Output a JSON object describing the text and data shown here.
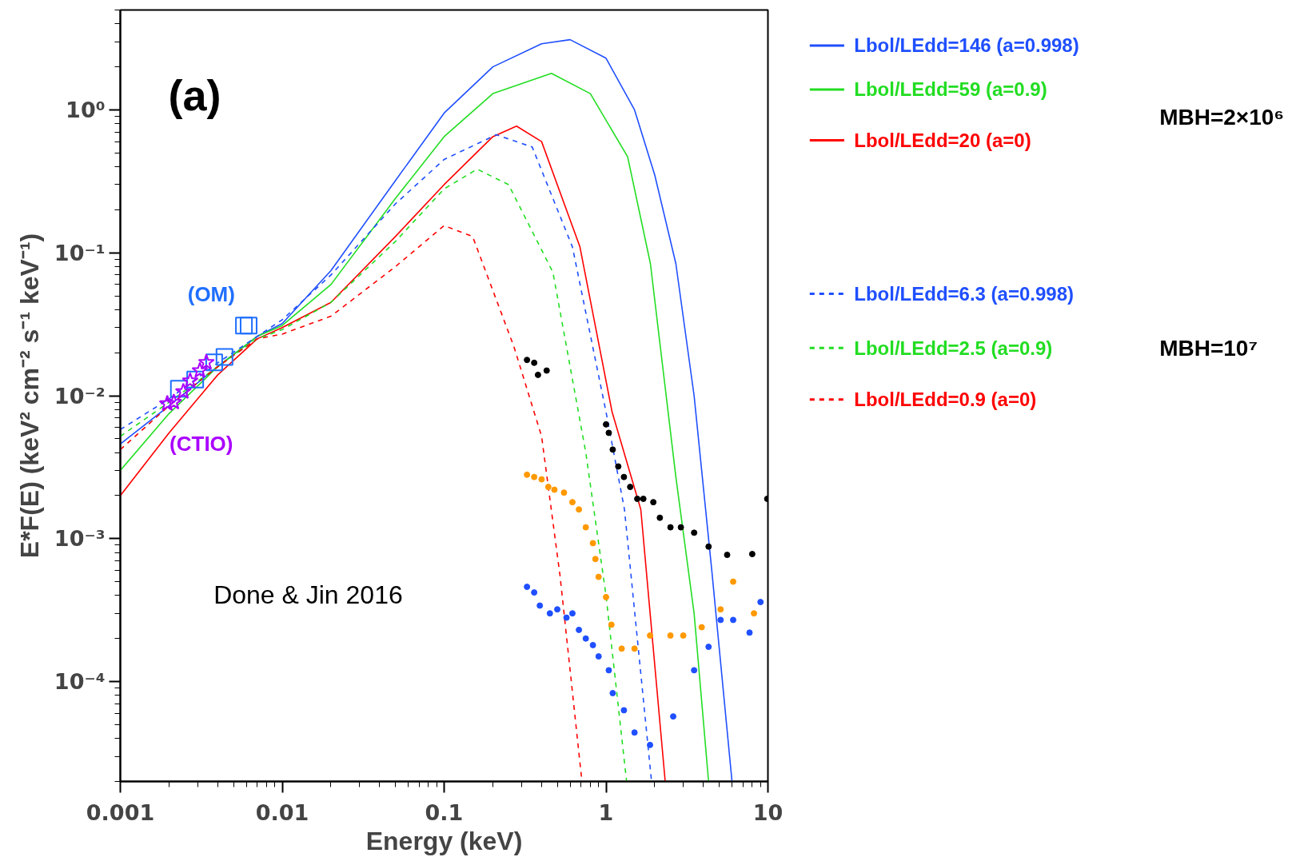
{
  "chart_data": {
    "type": "line",
    "xlabel": "Energy (keV)",
    "ylabel": "E*F(E) (keV² cm⁻² s⁻¹ keV⁻¹)",
    "log": "xy",
    "xlim": [
      0.001,
      10
    ],
    "ylim": [
      2e-05,
      5
    ],
    "xticks": [
      0.001,
      0.01,
      0.1,
      1,
      10
    ],
    "yticks": [
      {
        "value": 0.0001,
        "label": "10⁻⁴"
      },
      {
        "value": 0.001,
        "label": "10⁻³"
      },
      {
        "value": 0.01,
        "label": "10⁻²"
      },
      {
        "value": 0.1,
        "label": "10⁻¹"
      },
      {
        "value": 1,
        "label": "10⁰"
      }
    ],
    "grid": false,
    "legend": "right",
    "annotations": [
      "(a)",
      "Done & Jin 2016",
      "MBH=2×10⁶",
      "MBH=10⁷"
    ],
    "series": [
      {
        "name": "Lbol/LEdd=146 (a=0.998)",
        "line_style": "solid",
        "marker": "none",
        "color": "#1f4fff",
        "x": [
          0.001,
          0.002,
          0.004,
          0.007,
          0.01,
          0.02,
          0.05,
          0.1,
          0.2,
          0.4,
          0.6,
          1.0,
          1.5,
          2.0,
          2.7,
          3.5,
          4.5,
          6
        ],
        "values": [
          0.0046,
          0.0085,
          0.016,
          0.026,
          0.032,
          0.075,
          0.32,
          0.95,
          2.0,
          2.9,
          3.1,
          2.3,
          1.0,
          0.35,
          0.084,
          0.01,
          0.0006,
          2e-05
        ]
      },
      {
        "name": "Lbol/LEdd=59 (a=0.9)",
        "line_style": "solid",
        "marker": "none",
        "color": "#22dd22",
        "x": [
          0.001,
          0.002,
          0.004,
          0.007,
          0.01,
          0.02,
          0.05,
          0.1,
          0.2,
          0.46,
          0.8,
          1.36,
          1.88,
          2.7,
          3.5,
          4.3
        ],
        "values": [
          0.003,
          0.0075,
          0.016,
          0.026,
          0.031,
          0.06,
          0.24,
          0.65,
          1.3,
          1.8,
          1.3,
          0.47,
          0.084,
          0.0027,
          0.0003,
          2e-05
        ]
      },
      {
        "name": "Lbol/LEdd=20 (a=0)",
        "line_style": "solid",
        "marker": "none",
        "color": "#ff0000",
        "x": [
          0.001,
          0.002,
          0.004,
          0.007,
          0.01,
          0.02,
          0.05,
          0.1,
          0.2,
          0.28,
          0.4,
          0.69,
          1.09,
          1.64,
          2.32
        ],
        "values": [
          0.002,
          0.0055,
          0.014,
          0.025,
          0.03,
          0.045,
          0.13,
          0.3,
          0.65,
          0.77,
          0.6,
          0.11,
          0.0077,
          0.0016,
          2e-05
        ]
      },
      {
        "name": "Lbol/LEdd=6.3 (a=0.998)",
        "line_style": "dashed",
        "marker": "none",
        "color": "#1f4fff",
        "x": [
          0.001,
          0.002,
          0.004,
          0.007,
          0.01,
          0.02,
          0.05,
          0.1,
          0.21,
          0.35,
          0.62,
          1.0,
          1.3,
          1.91
        ],
        "values": [
          0.0058,
          0.0095,
          0.017,
          0.026,
          0.034,
          0.07,
          0.22,
          0.45,
          0.67,
          0.55,
          0.11,
          0.0077,
          0.0016,
          2e-05
        ]
      },
      {
        "name": "Lbol/LEdd=2.5 (a=0.9)",
        "line_style": "dashed",
        "marker": "none",
        "color": "#22dd22",
        "x": [
          0.001,
          0.002,
          0.004,
          0.007,
          0.01,
          0.02,
          0.05,
          0.1,
          0.16,
          0.25,
          0.47,
          0.75,
          1.0,
          1.34
        ],
        "values": [
          0.0052,
          0.009,
          0.016,
          0.025,
          0.029,
          0.045,
          0.12,
          0.28,
          0.385,
          0.3,
          0.073,
          0.004,
          0.0004,
          2e-05
        ]
      },
      {
        "name": "Lbol/LEdd=0.9 (a=0)",
        "line_style": "dashed",
        "marker": "none",
        "color": "#ff0000",
        "x": [
          0.001,
          0.002,
          0.004,
          0.007,
          0.01,
          0.02,
          0.05,
          0.1,
          0.15,
          0.27,
          0.4,
          0.52,
          0.71
        ],
        "values": [
          0.0042,
          0.0085,
          0.016,
          0.025,
          0.027,
          0.036,
          0.08,
          0.155,
          0.13,
          0.022,
          0.0052,
          0.00055,
          2e-05
        ]
      },
      {
        "type": "scatter",
        "marker": "circle",
        "color": "#000000",
        "x": [
          0.325,
          0.36,
          0.38,
          0.43,
          1.0,
          1.04,
          1.1,
          1.19,
          1.29,
          1.41,
          1.56,
          1.7,
          1.96,
          2.15,
          2.5,
          2.9,
          3.5,
          4.3,
          5.6,
          8.0,
          9.9
        ],
        "values": [
          0.0178,
          0.017,
          0.014,
          0.015,
          0.0063,
          0.0055,
          0.0042,
          0.0032,
          0.0027,
          0.0023,
          0.0019,
          0.0019,
          0.0018,
          0.0014,
          0.0012,
          0.0012,
          0.0011,
          0.00088,
          0.00077,
          0.00078,
          0.0019
        ]
      },
      {
        "type": "scatter",
        "marker": "circle",
        "color": "#ff9900",
        "x": [
          0.325,
          0.36,
          0.4,
          0.44,
          0.48,
          0.55,
          0.62,
          0.68,
          0.75,
          0.83,
          0.86,
          0.9,
          1.0,
          1.08,
          1.25,
          1.5,
          1.87,
          2.5,
          3.0,
          3.9,
          5.1,
          6.1,
          8.2
        ],
        "values": [
          0.0028,
          0.0027,
          0.0026,
          0.0023,
          0.0022,
          0.0021,
          0.0018,
          0.0016,
          0.0012,
          0.00093,
          0.00072,
          0.00054,
          0.00039,
          0.00025,
          0.00017,
          0.00017,
          0.00021,
          0.00021,
          0.00021,
          0.00024,
          0.00032,
          0.0005,
          0.0003
        ]
      },
      {
        "type": "scatter",
        "marker": "circle",
        "color": "#1f4fff",
        "x": [
          0.325,
          0.36,
          0.39,
          0.45,
          0.5,
          0.57,
          0.62,
          0.68,
          0.75,
          0.83,
          0.9,
          1.04,
          1.1,
          1.29,
          1.5,
          1.87,
          2.6,
          3.5,
          4.3,
          5.1,
          6.1,
          7.7,
          9.0
        ],
        "values": [
          0.00046,
          0.00042,
          0.00034,
          0.0003,
          0.00032,
          0.00028,
          0.0003,
          0.00023,
          0.0002,
          0.00018,
          0.00015,
          0.00012,
          8.3e-05,
          6.3e-05,
          4.4e-05,
          3.6e-05,
          5.7e-05,
          0.00012,
          0.000175,
          0.00027,
          0.00027,
          0.00022,
          0.00036
        ]
      },
      {
        "name": "(OM)",
        "type": "scatter",
        "marker": "square",
        "color": "#1f6fff",
        "x": [
          0.0023,
          0.0029,
          0.0038,
          0.0044,
          0.0058,
          0.0062
        ],
        "values": [
          0.0112,
          0.013,
          0.0171,
          0.0187,
          0.031,
          0.031
        ]
      },
      {
        "name": "(CTIO)",
        "type": "scatter",
        "marker": "star",
        "color": "#aa00ff",
        "x": [
          0.00195,
          0.00214,
          0.00245,
          0.0027,
          0.0031,
          0.0034
        ],
        "values": [
          0.0088,
          0.009,
          0.0107,
          0.0127,
          0.015,
          0.0171
        ]
      }
    ]
  }
}
